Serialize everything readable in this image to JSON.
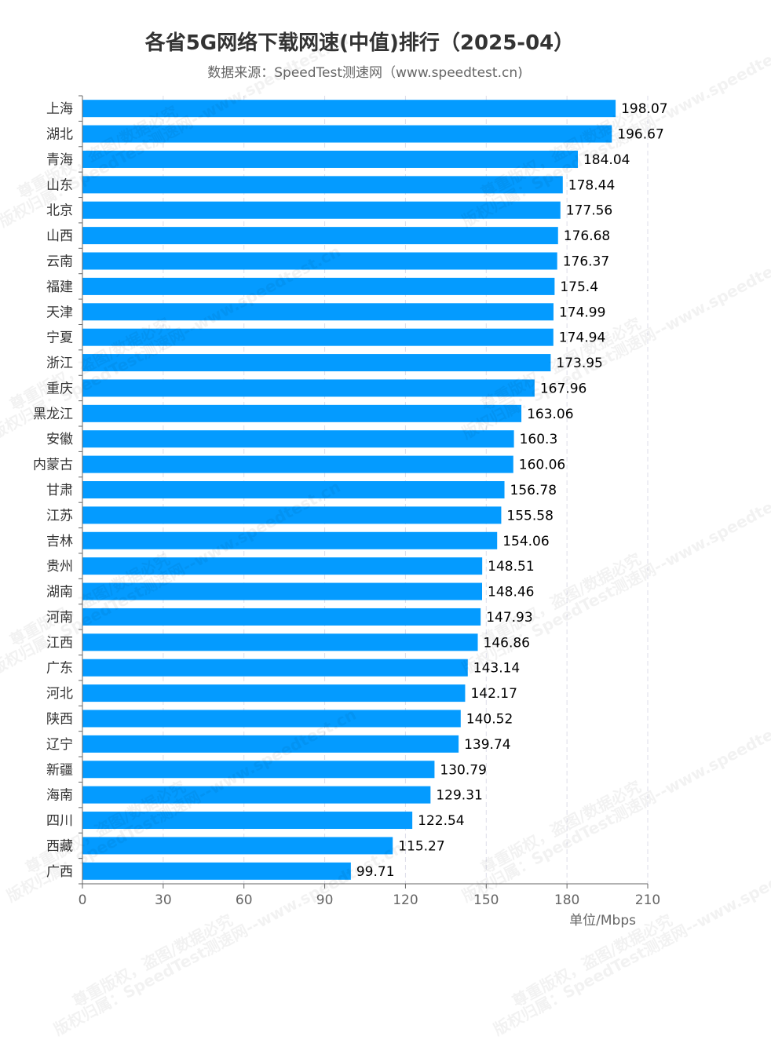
{
  "header": {
    "title": "各省5G网络下载网速(中值)排行（2025-04）",
    "subtitle": "数据来源：SpeedTest测速网（www.speedtest.cn)"
  },
  "watermark": {
    "line1": "版权归属：SpeedTest测速网--www.speedtest.cn",
    "line2": "尊重版权，盗图/数据必究"
  },
  "chart_data": {
    "type": "bar",
    "orientation": "horizontal",
    "title": "各省5G网络下载网速(中值)排行（2025-04）",
    "xlabel": "单位/Mbps",
    "xlim": [
      0,
      210
    ],
    "xticks": [
      0,
      30,
      60,
      90,
      120,
      150,
      180,
      210
    ],
    "grid": true,
    "bar_color": "#049bff",
    "categories": [
      "上海",
      "湖北",
      "青海",
      "山东",
      "北京",
      "山西",
      "云南",
      "福建",
      "天津",
      "宁夏",
      "浙江",
      "重庆",
      "黑龙江",
      "安徽",
      "内蒙古",
      "甘肃",
      "江苏",
      "吉林",
      "贵州",
      "湖南",
      "河南",
      "江西",
      "广东",
      "河北",
      "陕西",
      "辽宁",
      "新疆",
      "海南",
      "四川",
      "西藏",
      "广西"
    ],
    "values": [
      "198.07",
      "196.67",
      "184.04",
      "178.44",
      "177.56",
      "176.68",
      "176.37",
      "175.4",
      "174.99",
      "174.94",
      "173.95",
      "167.96",
      "163.06",
      "160.3",
      "160.06",
      "156.78",
      "155.58",
      "154.06",
      "148.51",
      "148.46",
      "147.93",
      "146.86",
      "143.14",
      "142.17",
      "140.52",
      "139.74",
      "130.79",
      "129.31",
      "122.54",
      "115.27",
      "99.71"
    ]
  }
}
